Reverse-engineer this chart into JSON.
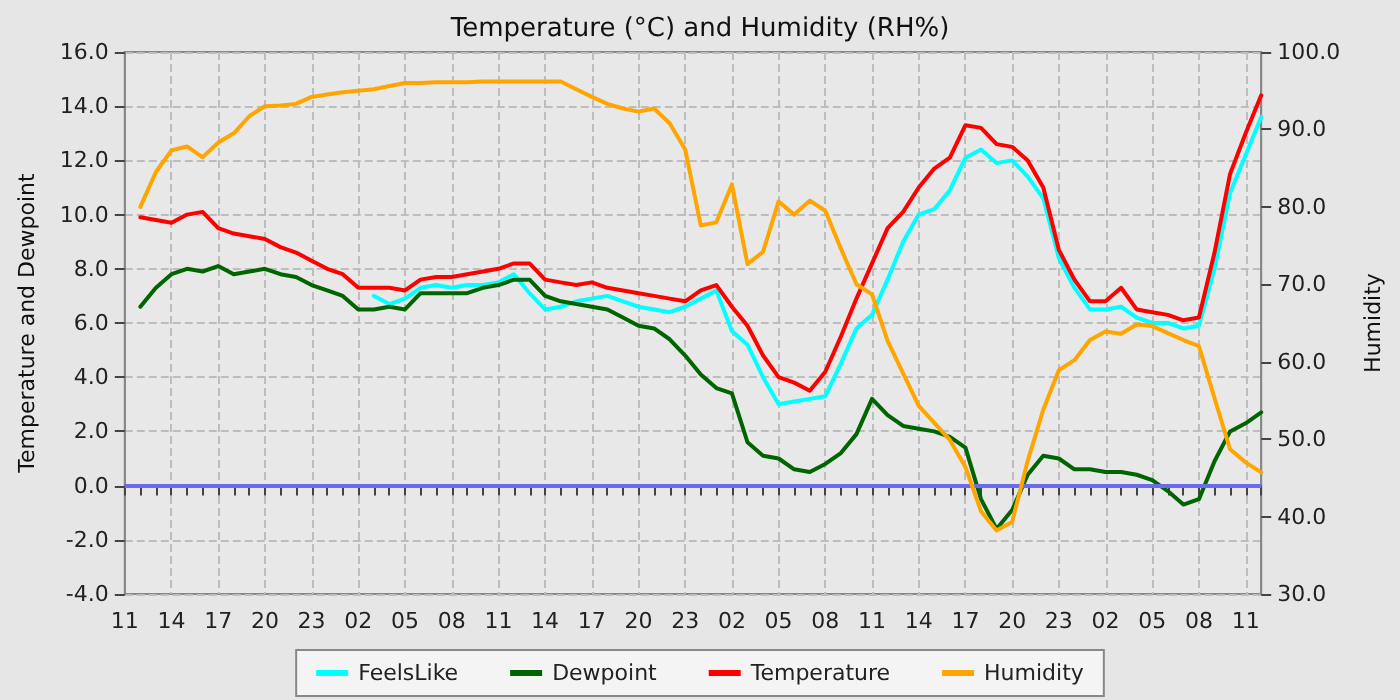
{
  "chart_data": {
    "type": "line",
    "title": "Temperature (°C) and Humidity (RH%)",
    "ylabel": "Temperature and Dewpoint",
    "y2label": "Humidity",
    "categories": [
      "11",
      null,
      null,
      "14",
      null,
      null,
      "17",
      null,
      null,
      "20",
      null,
      null,
      "23",
      null,
      null,
      "02",
      null,
      null,
      "05",
      null,
      null,
      "08",
      null,
      null,
      "11",
      null,
      null,
      "14",
      null,
      null,
      "17",
      null,
      null,
      "20",
      null,
      null,
      "23",
      null,
      null,
      "02",
      null,
      null,
      "05",
      null,
      null,
      "08",
      null,
      null,
      "11",
      null,
      null,
      "14",
      null,
      null,
      "17",
      null,
      null,
      "20",
      null,
      null,
      "23",
      null,
      null,
      "02",
      null,
      null,
      "05",
      null,
      null,
      "08",
      null,
      null,
      "11",
      null
    ],
    "ylim": [
      -4,
      16
    ],
    "yticks": [
      {
        "value": -4,
        "label": "-4.0"
      },
      {
        "value": -2,
        "label": "-2.0"
      },
      {
        "value": 0,
        "label": "0.0"
      },
      {
        "value": 2,
        "label": "2.0"
      },
      {
        "value": 4,
        "label": "4.0"
      },
      {
        "value": 6,
        "label": "6.0"
      },
      {
        "value": 8,
        "label": "8.0"
      },
      {
        "value": 10,
        "label": "10.0"
      },
      {
        "value": 12,
        "label": "12.0"
      },
      {
        "value": 14,
        "label": "14.0"
      },
      {
        "value": 16,
        "label": "16.0"
      }
    ],
    "y2lim": [
      30,
      100
    ],
    "y2ticks": [
      {
        "value": 30,
        "label": "30.0"
      },
      {
        "value": 40,
        "label": "40.0"
      },
      {
        "value": 50,
        "label": "50.0"
      },
      {
        "value": 60,
        "label": "60.0"
      },
      {
        "value": 70,
        "label": "70.0"
      },
      {
        "value": 80,
        "label": "80.0"
      },
      {
        "value": 90,
        "label": "90.0"
      },
      {
        "value": 100,
        "label": "100.0"
      }
    ],
    "grid": true,
    "legend": "bottom",
    "line_style": "solid",
    "marker": "none",
    "ref_lines": [
      {
        "axis": "y",
        "value": 0,
        "color": "#6a6af0"
      }
    ],
    "series": [
      {
        "name": "FeelsLike",
        "color": "#00ffff",
        "values": [
          null,
          null,
          null,
          null,
          null,
          null,
          null,
          null,
          null,
          null,
          null,
          null,
          null,
          null,
          null,
          null,
          7.0,
          6.7,
          6.9,
          7.3,
          7.4,
          7.3,
          7.4,
          7.4,
          7.5,
          7.8,
          7.1,
          6.5,
          6.6,
          6.8,
          6.9,
          7.0,
          6.8,
          6.6,
          6.5,
          6.4,
          6.6,
          6.9,
          7.2,
          5.7,
          5.2,
          4.0,
          3.0,
          3.1,
          3.2,
          3.3,
          4.5,
          5.8,
          6.3,
          7.6,
          9.0,
          10.0,
          10.2,
          10.9,
          12.1,
          12.4,
          11.9,
          12.0,
          11.4,
          10.6,
          8.4,
          7.3,
          6.5,
          6.5,
          6.6,
          6.2,
          6.0,
          6.0,
          5.8,
          5.9,
          8.0,
          10.8,
          12.2,
          13.6
        ]
      },
      {
        "name": "Dewpoint",
        "color": "#006400",
        "values": [
          null,
          6.6,
          7.3,
          7.8,
          8.0,
          7.9,
          8.1,
          7.8,
          7.9,
          8.0,
          7.8,
          7.7,
          7.4,
          7.2,
          7.0,
          6.5,
          6.5,
          6.6,
          6.5,
          7.1,
          7.1,
          7.1,
          7.1,
          7.3,
          7.4,
          7.6,
          7.6,
          7.0,
          6.8,
          6.7,
          6.6,
          6.5,
          6.2,
          5.9,
          5.8,
          5.4,
          4.8,
          4.1,
          3.6,
          3.4,
          1.6,
          1.1,
          1.0,
          0.6,
          0.5,
          0.8,
          1.2,
          1.9,
          3.2,
          2.6,
          2.2,
          2.1,
          2.0,
          1.8,
          1.4,
          -0.5,
          -1.6,
          -0.9,
          0.4,
          1.1,
          1.0,
          0.6,
          0.6,
          0.5,
          0.5,
          0.4,
          0.2,
          -0.2,
          -0.7,
          -0.5,
          0.9,
          2.0,
          2.3,
          2.7
        ]
      },
      {
        "name": "Temperature",
        "color": "#ff0000",
        "values": [
          null,
          9.9,
          9.8,
          9.7,
          10.0,
          10.1,
          9.5,
          9.3,
          9.2,
          9.1,
          8.8,
          8.6,
          8.3,
          8.0,
          7.8,
          7.3,
          7.3,
          7.3,
          7.2,
          7.6,
          7.7,
          7.7,
          7.8,
          7.9,
          8.0,
          8.2,
          8.2,
          7.6,
          7.5,
          7.4,
          7.5,
          7.3,
          7.2,
          7.1,
          7.0,
          6.9,
          6.8,
          7.2,
          7.4,
          6.6,
          5.9,
          4.8,
          4.0,
          3.8,
          3.5,
          4.2,
          5.5,
          6.9,
          8.2,
          9.5,
          10.1,
          11.0,
          11.7,
          12.1,
          13.3,
          13.2,
          12.6,
          12.5,
          12.0,
          11.0,
          8.7,
          7.6,
          6.8,
          6.8,
          7.3,
          6.5,
          6.4,
          6.3,
          6.1,
          6.2,
          8.6,
          11.5,
          13.0,
          14.4
        ]
      },
      {
        "name": "Humidity",
        "color": "#ffa500",
        "axis": "y2",
        "values": [
          null,
          80,
          84.5,
          87.3,
          87.8,
          86.4,
          88.3,
          89.5,
          91.7,
          93,
          93.1,
          93.3,
          94.2,
          94.5,
          94.8,
          95,
          95.2,
          95.6,
          96,
          96,
          96.1,
          96.1,
          96.1,
          96.2,
          96.2,
          96.2,
          96.2,
          96.2,
          96.2,
          95.2,
          94.2,
          93.3,
          92.7,
          92.3,
          92.7,
          90.8,
          87.4,
          77.6,
          78,
          82.9,
          72.6,
          74.2,
          80.7,
          79,
          80.8,
          79.5,
          74.6,
          70,
          68.7,
          62.7,
          58.5,
          54.3,
          52.1,
          49.9,
          46.4,
          40.7,
          38.2,
          39.3,
          47.2,
          53.8,
          58.9,
          60.2,
          62.8,
          63.9,
          63.6,
          64.8,
          64.6,
          63.7,
          62.8,
          62,
          55.3,
          48.7,
          47,
          45.7
        ]
      }
    ]
  }
}
